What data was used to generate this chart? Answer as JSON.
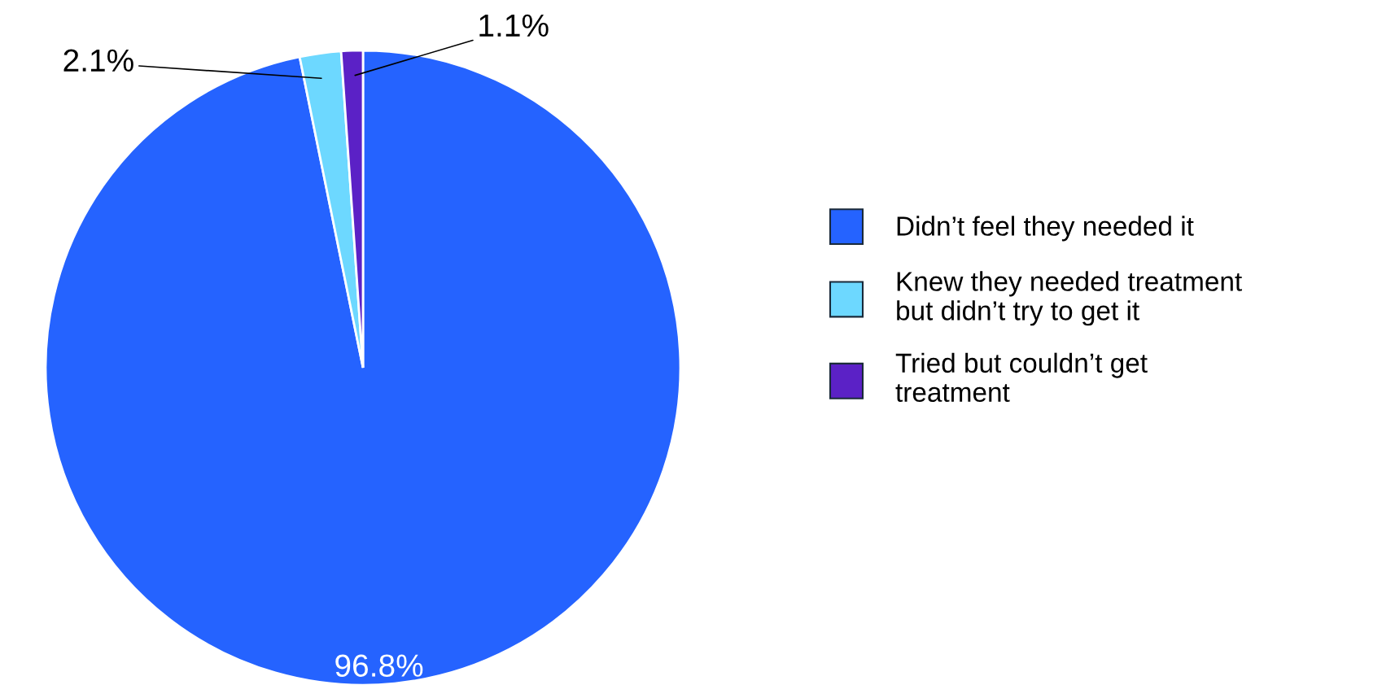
{
  "chart_data": {
    "type": "pie",
    "categories": [
      "Didn’t feel they needed it",
      "Knew they needed treatment\nbut didn’t try to get it",
      "Tried but couldn’t get\ntreatment"
    ],
    "values": [
      96.8,
      2.1,
      1.1
    ],
    "colors": [
      "#2563ff",
      "#6dd8ff",
      "#5b21c6"
    ],
    "value_labels": [
      "96.8%",
      "2.1%",
      "1.1%"
    ],
    "legend": "right"
  }
}
